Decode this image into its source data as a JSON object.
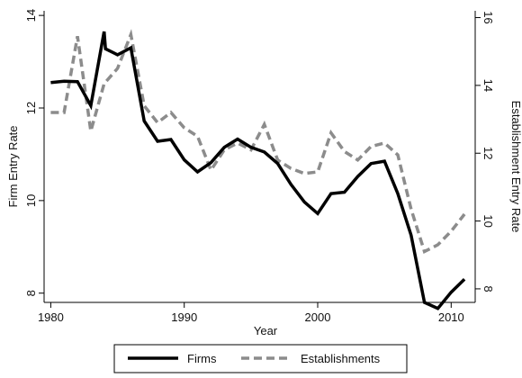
{
  "chart_data": {
    "type": "line",
    "title": "",
    "xlabel": "Year",
    "ylabel_left": "Firm Entry Rate",
    "ylabel_right": "Establishment Entry Rate",
    "xlim": [
      1979.5,
      2011.8
    ],
    "ylim_left": [
      7.8,
      14.1
    ],
    "ylim_right": [
      7.6,
      16.2
    ],
    "x_ticks": [
      1980,
      1990,
      2000,
      2010
    ],
    "y_ticks_left": [
      8,
      10,
      12,
      14
    ],
    "y_ticks_right": [
      8,
      10,
      12,
      14,
      16
    ],
    "grid": false,
    "legend_position": "bottom",
    "series": [
      {
        "name": "Firms",
        "axis": "left",
        "style": "solid",
        "color": "#000000",
        "x": [
          1980,
          1981,
          1982,
          1983,
          1984,
          1984.1,
          1985,
          1986,
          1987,
          1988,
          1989,
          1990,
          1991,
          1992,
          1993,
          1994,
          1995,
          1996,
          1997,
          1998,
          1999,
          2000,
          2001,
          2002,
          2003,
          2004,
          2005,
          2006,
          2007,
          2008,
          2009,
          2010,
          2011
        ],
        "values": [
          12.55,
          12.58,
          12.57,
          12.05,
          13.65,
          13.28,
          13.15,
          13.3,
          11.72,
          11.28,
          11.32,
          10.88,
          10.62,
          10.82,
          11.15,
          11.33,
          11.15,
          11.05,
          10.8,
          10.35,
          9.97,
          9.72,
          10.15,
          10.18,
          10.52,
          10.8,
          10.85,
          10.15,
          9.25,
          7.8,
          7.67,
          8.02,
          8.3
        ]
      },
      {
        "name": "Establishments",
        "axis": "right",
        "style": "dashed",
        "color": "#8c8c8c",
        "x": [
          1980,
          1981,
          1982,
          1983,
          1984,
          1985,
          1986,
          1987,
          1988,
          1989,
          1990,
          1991,
          1992,
          1993,
          1994,
          1995,
          1996,
          1997,
          1998,
          1999,
          2000,
          2001,
          2002,
          2003,
          2004,
          2005,
          2006,
          2007,
          2008,
          2009,
          2010,
          2011
        ],
        "values": [
          13.2,
          13.2,
          15.45,
          12.65,
          14.05,
          14.5,
          15.5,
          13.4,
          12.9,
          13.2,
          12.75,
          12.5,
          11.5,
          12.1,
          12.3,
          12.1,
          12.85,
          11.8,
          11.55,
          11.4,
          11.45,
          12.6,
          12.05,
          11.8,
          12.2,
          12.3,
          11.95,
          10.35,
          9.1,
          9.3,
          9.7,
          10.2
        ]
      }
    ],
    "colors": {
      "axis": "#000000",
      "firms": "#000000",
      "establishments": "#8c8c8c"
    }
  }
}
